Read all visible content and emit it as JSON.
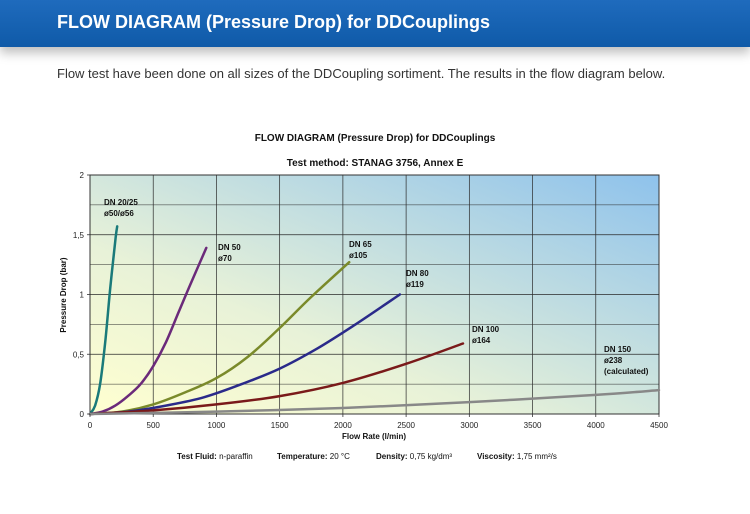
{
  "page": {
    "title": "FLOW DIAGRAM (Pressure Drop) for DDCouplings",
    "intro": "Flow test have been done on all sizes of the DDCoupling sortiment. The results in the flow diagram below."
  },
  "colors": {
    "header": "#1565b5",
    "dn20_25": "#1a7a7a",
    "dn50": "#6b2a7a",
    "dn65": "#7a8a2a",
    "dn80": "#2a2a8a",
    "dn100": "#7a1a1a",
    "dn150": "#888888"
  },
  "chart_data": {
    "type": "line",
    "title": "FLOW DIAGRAM (Pressure Drop) for DDCouplings",
    "subtitle": "Test method: STANAG 3756, Annex E",
    "xlabel": "Flow Rate (l/min)",
    "ylabel": "Pressure Drop (bar)",
    "xlim": [
      0,
      4500
    ],
    "ylim": [
      0,
      2
    ],
    "xticks": [
      "0",
      "500",
      "1000",
      "1500",
      "2000",
      "2500",
      "3000",
      "3500",
      "4000",
      "4500"
    ],
    "yticks": [
      "0",
      "0,5",
      "1",
      "1,5",
      "2"
    ],
    "grid": true,
    "series": [
      {
        "name": "DN 20/25",
        "label": [
          "DN 20/25",
          "ø50/ø56"
        ],
        "color": "#1a7a7a",
        "x": [
          0,
          40,
          80,
          120,
          160,
          200,
          215
        ],
        "y": [
          0,
          0.07,
          0.25,
          0.6,
          1.05,
          1.45,
          1.57
        ]
      },
      {
        "name": "DN 50",
        "label": [
          "DN 50",
          "ø70"
        ],
        "color": "#6b2a7a",
        "x": [
          0,
          100,
          200,
          300,
          400,
          500,
          600,
          700,
          800,
          920
        ],
        "y": [
          0,
          0.02,
          0.07,
          0.15,
          0.25,
          0.4,
          0.6,
          0.85,
          1.1,
          1.39
        ]
      },
      {
        "name": "DN 65",
        "label": [
          "DN 65",
          "ø105"
        ],
        "color": "#7a8a2a",
        "x": [
          0,
          250,
          500,
          750,
          1000,
          1250,
          1500,
          1750,
          2050
        ],
        "y": [
          0,
          0.02,
          0.08,
          0.18,
          0.3,
          0.48,
          0.72,
          0.98,
          1.27
        ]
      },
      {
        "name": "DN 80",
        "label": [
          "DN 80",
          "ø119"
        ],
        "color": "#2a2a8a",
        "x": [
          0,
          300,
          600,
          900,
          1200,
          1500,
          1800,
          2100,
          2450
        ],
        "y": [
          0,
          0.02,
          0.07,
          0.14,
          0.25,
          0.38,
          0.55,
          0.75,
          1.0
        ]
      },
      {
        "name": "DN 100",
        "label": [
          "DN 100",
          "ø164"
        ],
        "color": "#7a1a1a",
        "x": [
          0,
          500,
          1000,
          1500,
          2000,
          2500,
          2950
        ],
        "y": [
          0,
          0.03,
          0.08,
          0.15,
          0.26,
          0.42,
          0.59
        ]
      },
      {
        "name": "DN 150",
        "label": [
          "DN 150",
          "ø238",
          "(calculated)"
        ],
        "color": "#888888",
        "x": [
          0,
          1000,
          2000,
          3000,
          4000,
          4500
        ],
        "y": [
          0,
          0.02,
          0.05,
          0.1,
          0.16,
          0.2
        ]
      }
    ],
    "footer": [
      {
        "key": "Test Fluid:",
        "value": "n-paraffin"
      },
      {
        "key": "Temperature:",
        "value": "20 °C"
      },
      {
        "key": "Density:",
        "value": "0,75 kg/dm³"
      },
      {
        "key": "Viscosity:",
        "value": "1,75 mm²/s"
      }
    ]
  }
}
